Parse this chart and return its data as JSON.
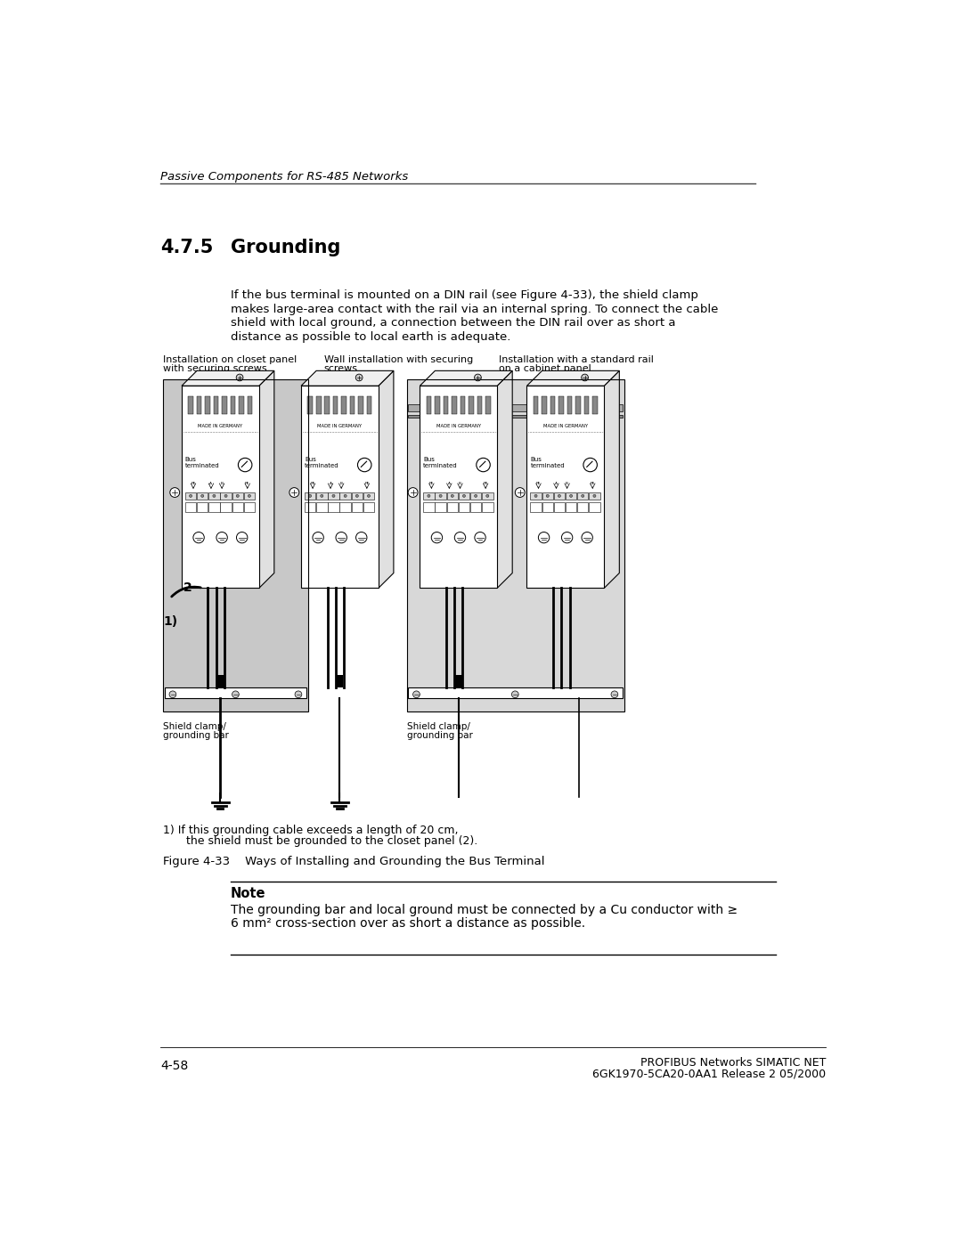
{
  "page_header_italic": "Passive Components for RS-485 Networks",
  "section_number": "4.7.5",
  "section_title": "Grounding",
  "body_text_line1": "If the bus terminal is mounted on a DIN rail (see Figure 4-33), the shield clamp",
  "body_text_line2": "makes large-area contact with the rail via an internal spring. To connect the cable",
  "body_text_line3": "shield with local ground, a connection between the DIN rail over as short a",
  "body_text_line4": "distance as possible to local earth is adequate.",
  "caption_left_1": "Installation on closet panel",
  "caption_left_2": "with securing screws",
  "caption_mid_1": "Wall installation with securing",
  "caption_mid_2": "screws",
  "caption_right_1": "Installation with a standard rail",
  "caption_right_2": "on a cabinet panel",
  "figure_caption": "Figure 4-33    Ways of Installing and Grounding the Bus Terminal",
  "note_title": "Note",
  "note_body_line1": "The grounding bar and local ground must be connected by a Cu conductor with ≥",
  "note_body_line2": "6 mm² cross-section over as short a distance as possible.",
  "footnote_line1": "1) If this grounding cable exceeds a length of 20 cm,",
  "footnote_line2": "    the shield must be grounded to the closet panel (2).",
  "footer_left": "4-58",
  "footer_right_line1": "PROFIBUS Networks SIMATIC NET",
  "footer_right_line2": "6GK1970-5CA20-0AA1 Release 2 05/2000",
  "bg_color": "#ffffff",
  "text_color": "#000000",
  "grey_bg": "#c8c8c8",
  "grey_light": "#d8d8d8",
  "grey_med": "#b0b0b0"
}
